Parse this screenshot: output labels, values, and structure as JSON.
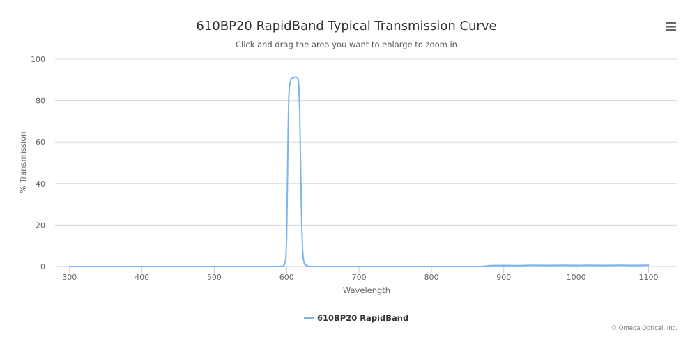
{
  "chart_data": {
    "type": "line",
    "title": "610BP20 RapidBand Typical Transmission Curve",
    "subtitle": "Click and drag the area you want to enlarge to zoom in",
    "xlabel": "Wavelength",
    "ylabel": "% Transmission",
    "xlim": [
      280,
      1140
    ],
    "ylim": [
      0,
      100
    ],
    "x_ticks": [
      300,
      400,
      500,
      600,
      700,
      800,
      900,
      1000,
      1100
    ],
    "y_ticks": [
      0,
      20,
      40,
      60,
      80,
      100
    ],
    "grid": true,
    "legend_position": "bottom-center",
    "series": [
      {
        "name": "610BP20 RapidBand",
        "color": "#7cb5ec",
        "x": [
          300,
          400,
          500,
          580,
          590,
          595,
          597,
          599,
          600,
          601,
          602,
          603,
          604,
          606,
          608,
          610,
          612,
          614,
          616,
          617,
          618,
          619,
          620,
          621,
          622,
          623,
          624,
          625,
          628,
          632,
          640,
          700,
          800,
          870,
          880,
          900,
          920,
          940,
          960,
          980,
          1000,
          1020,
          1040,
          1060,
          1080,
          1100
        ],
        "values": [
          0,
          0,
          0,
          0,
          0,
          0.2,
          0.8,
          4,
          14,
          38,
          65,
          82,
          87,
          90.6,
          91,
          91.2,
          91.5,
          91.3,
          90.5,
          86,
          75,
          55,
          35,
          18,
          8,
          4,
          2,
          1,
          0.3,
          0,
          0,
          0,
          0,
          0,
          0.4,
          0.5,
          0.4,
          0.6,
          0.5,
          0.6,
          0.5,
          0.6,
          0.5,
          0.6,
          0.5,
          0.6
        ]
      }
    ]
  },
  "ui": {
    "menu_icon": "hamburger-menu-icon",
    "credits": "© Omega Optical, Inc."
  }
}
